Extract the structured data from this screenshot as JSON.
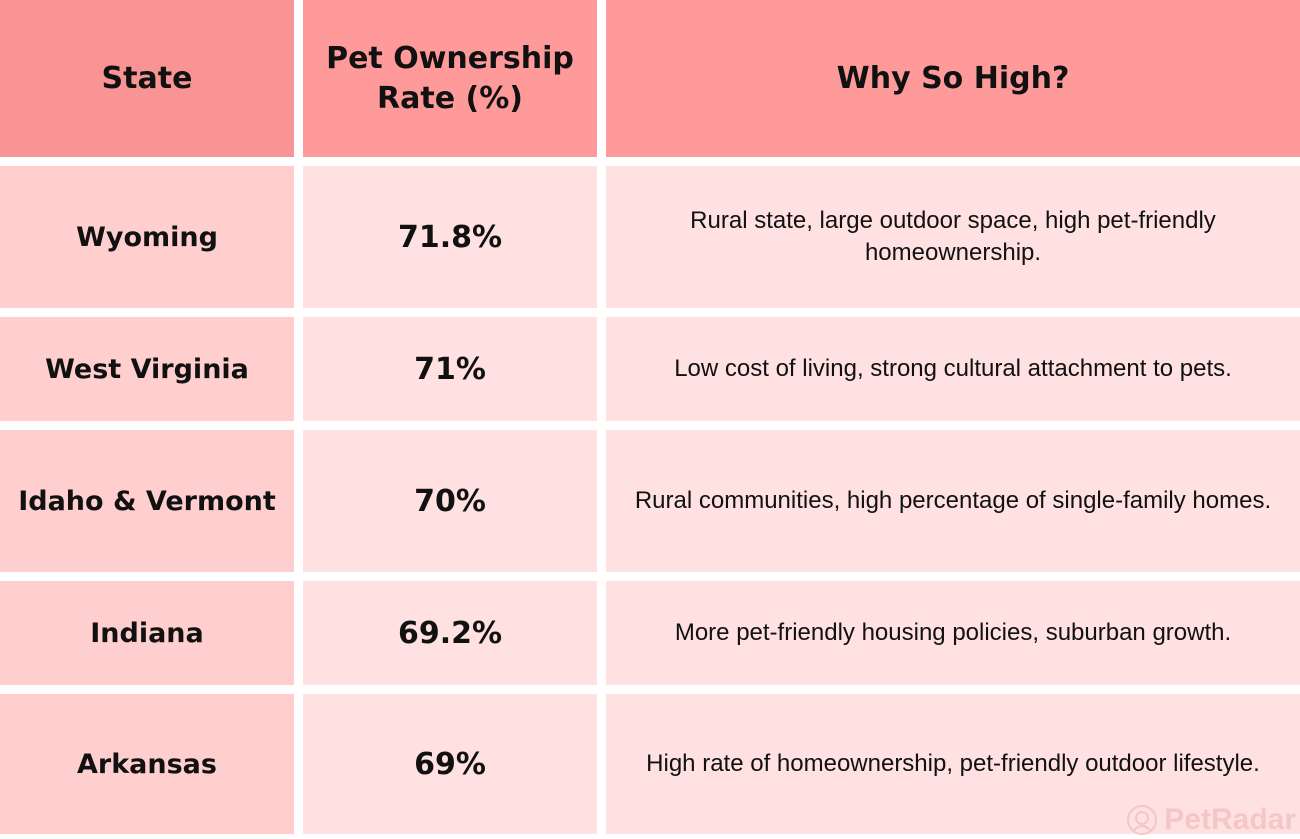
{
  "chart_data": {
    "type": "table",
    "columns": [
      "State",
      "Pet Ownership Rate (%)",
      "Why So High?"
    ],
    "rows": [
      {
        "state": "Wyoming",
        "rate": "71.8%",
        "reason": "Rural state, large outdoor space, high pet-friendly homeownership."
      },
      {
        "state": "West Virginia",
        "rate": "71%",
        "reason": "Low cost of living, strong cultural attachment to pets."
      },
      {
        "state": "Idaho & Vermont",
        "rate": "70%",
        "reason": "Rural communities, high percentage of single-family homes."
      },
      {
        "state": "Indiana",
        "rate": "69.2%",
        "reason": "More pet-friendly housing policies, suburban growth."
      },
      {
        "state": "Arkansas",
        "rate": "69%",
        "reason": "High rate of homeownership, pet-friendly outdoor lifestyle."
      }
    ],
    "values": [
      71.8,
      71,
      70,
      69.2,
      69
    ]
  },
  "watermark": "PetRadar",
  "colors": {
    "header": "#ff9a9a",
    "state_cell": "#ffcfcf",
    "body_cell": "#ffe1e1"
  }
}
